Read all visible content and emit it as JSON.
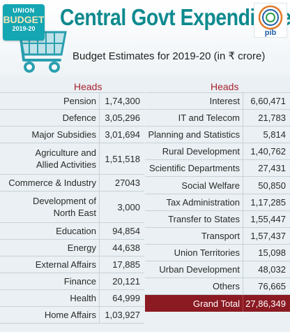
{
  "logo": {
    "line1": "UNION",
    "line2": "BUDGET",
    "line3": "2019-20"
  },
  "title": "Central  Govt Expenditure",
  "pib_logo": "pib",
  "subtitle": "Budget Estimates for 2019-20 (in ₹ crore)",
  "colors": {
    "teal": "#0e8a8f",
    "heads": "#a8232f",
    "grand_total_bg": "#8b1a22"
  },
  "left_column": {
    "heading": "Heads",
    "rows": [
      {
        "head": "Pension",
        "value": "1,74,300"
      },
      {
        "head": "Defence",
        "value": "3,05,296"
      },
      {
        "head": "Major Subsidies",
        "value": "3,01,694"
      },
      {
        "head": "Agriculture and Allied Activities",
        "line1": "Agriculture and",
        "line2": "Allied Activities",
        "value": "1,51,518"
      },
      {
        "head": "Commerce & Industry",
        "value": "27043"
      },
      {
        "head": "Development of North East",
        "line1": "Development of",
        "line2": "North East",
        "value": "3,000"
      },
      {
        "head": "Education",
        "value": "94,854"
      },
      {
        "head": "Energy",
        "value": "44,638"
      },
      {
        "head": "External Affairs",
        "value": "17,885"
      },
      {
        "head": "Finance",
        "value": "20,121"
      },
      {
        "head": "Health",
        "value": "64,999"
      },
      {
        "head": "Home Affairs",
        "value": "1,03,927"
      }
    ]
  },
  "right_column": {
    "heading": "Heads",
    "rows": [
      {
        "head": "Interest",
        "value": "6,60,471"
      },
      {
        "head": "IT and Telecom",
        "value": "21,783"
      },
      {
        "head": "Planning and Statistics",
        "value": "5,814"
      },
      {
        "head": "Rural Development",
        "value": "1,40,762"
      },
      {
        "head": "Scientific Departments",
        "value": "27,431"
      },
      {
        "head": "Social Welfare",
        "value": "50,850"
      },
      {
        "head": "Tax Administration",
        "value": "1,17,285"
      },
      {
        "head": "Transfer to States",
        "value": "1,55,447"
      },
      {
        "head": "Transport",
        "value": "1,57,437"
      },
      {
        "head": "Union Territories",
        "value": "15,098"
      },
      {
        "head": "Urban Development",
        "value": "48,032"
      },
      {
        "head": "Others",
        "value": "76,665"
      }
    ],
    "grand_total": {
      "head": "Grand Total",
      "value": "27,86,349"
    }
  }
}
